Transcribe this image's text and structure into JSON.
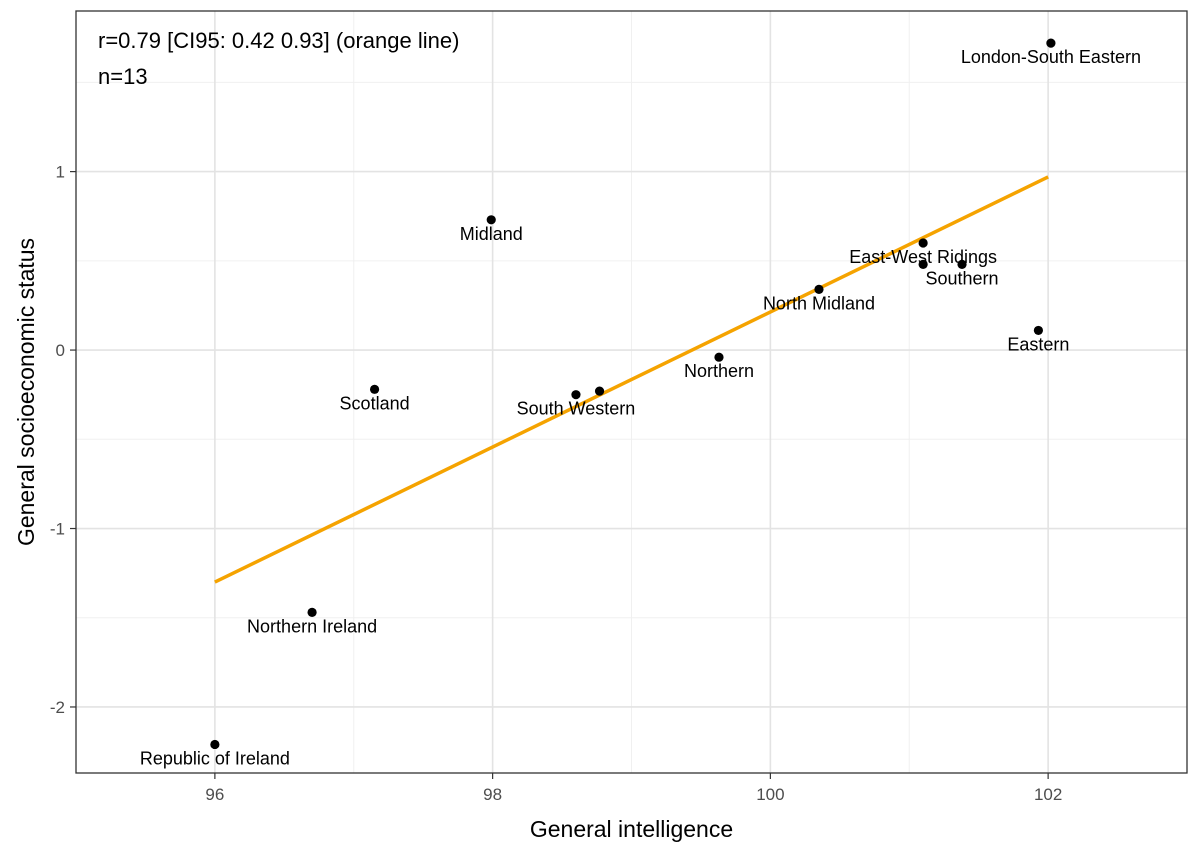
{
  "chart_data": {
    "type": "scatter",
    "xlabel": "General intelligence",
    "ylabel": "General socioeconomic status",
    "xlim": [
      95.0,
      103.0
    ],
    "ylim": [
      -2.37,
      1.9
    ],
    "x_ticks": [
      96,
      98,
      100,
      102
    ],
    "x_tick_labels": [
      "96",
      "98",
      "100",
      "102"
    ],
    "x_minor_ticks": [
      95,
      97,
      99,
      101,
      103
    ],
    "y_ticks": [
      -2,
      -1,
      0,
      1
    ],
    "y_tick_labels": [
      "-2",
      "-1",
      "0",
      "1"
    ],
    "y_minor_ticks": [
      -1.5,
      -0.5,
      0.5,
      1.5
    ],
    "grid": true,
    "annotations": [
      "r=0.79 [CI95: 0.42 0.93] (orange line)",
      "n=13"
    ],
    "fit_line": {
      "color": "#F5A300",
      "x": [
        96.0,
        102.0
      ],
      "y": [
        -1.3,
        0.97
      ]
    },
    "point_color": "#000000",
    "points": [
      {
        "x": 102.02,
        "y": 1.72,
        "label": "London-South Eastern"
      },
      {
        "x": 97.99,
        "y": 0.73,
        "label": "Midland"
      },
      {
        "x": 101.1,
        "y": 0.6,
        "label": "East-West Ridings"
      },
      {
        "x": 101.1,
        "y": 0.48,
        "label": ""
      },
      {
        "x": 101.38,
        "y": 0.48,
        "label": "Southern"
      },
      {
        "x": 100.35,
        "y": 0.34,
        "label": "North Midland"
      },
      {
        "x": 101.93,
        "y": 0.11,
        "label": "Eastern"
      },
      {
        "x": 99.63,
        "y": -0.04,
        "label": "Northern"
      },
      {
        "x": 97.15,
        "y": -0.22,
        "label": "Scotland"
      },
      {
        "x": 98.6,
        "y": -0.25,
        "label": "South Western"
      },
      {
        "x": 98.77,
        "y": -0.23,
        "label": ""
      },
      {
        "x": 96.7,
        "y": -1.47,
        "label": "Northern Ireland"
      },
      {
        "x": 96.0,
        "y": -2.21,
        "label": "Republic of Ireland"
      }
    ]
  }
}
